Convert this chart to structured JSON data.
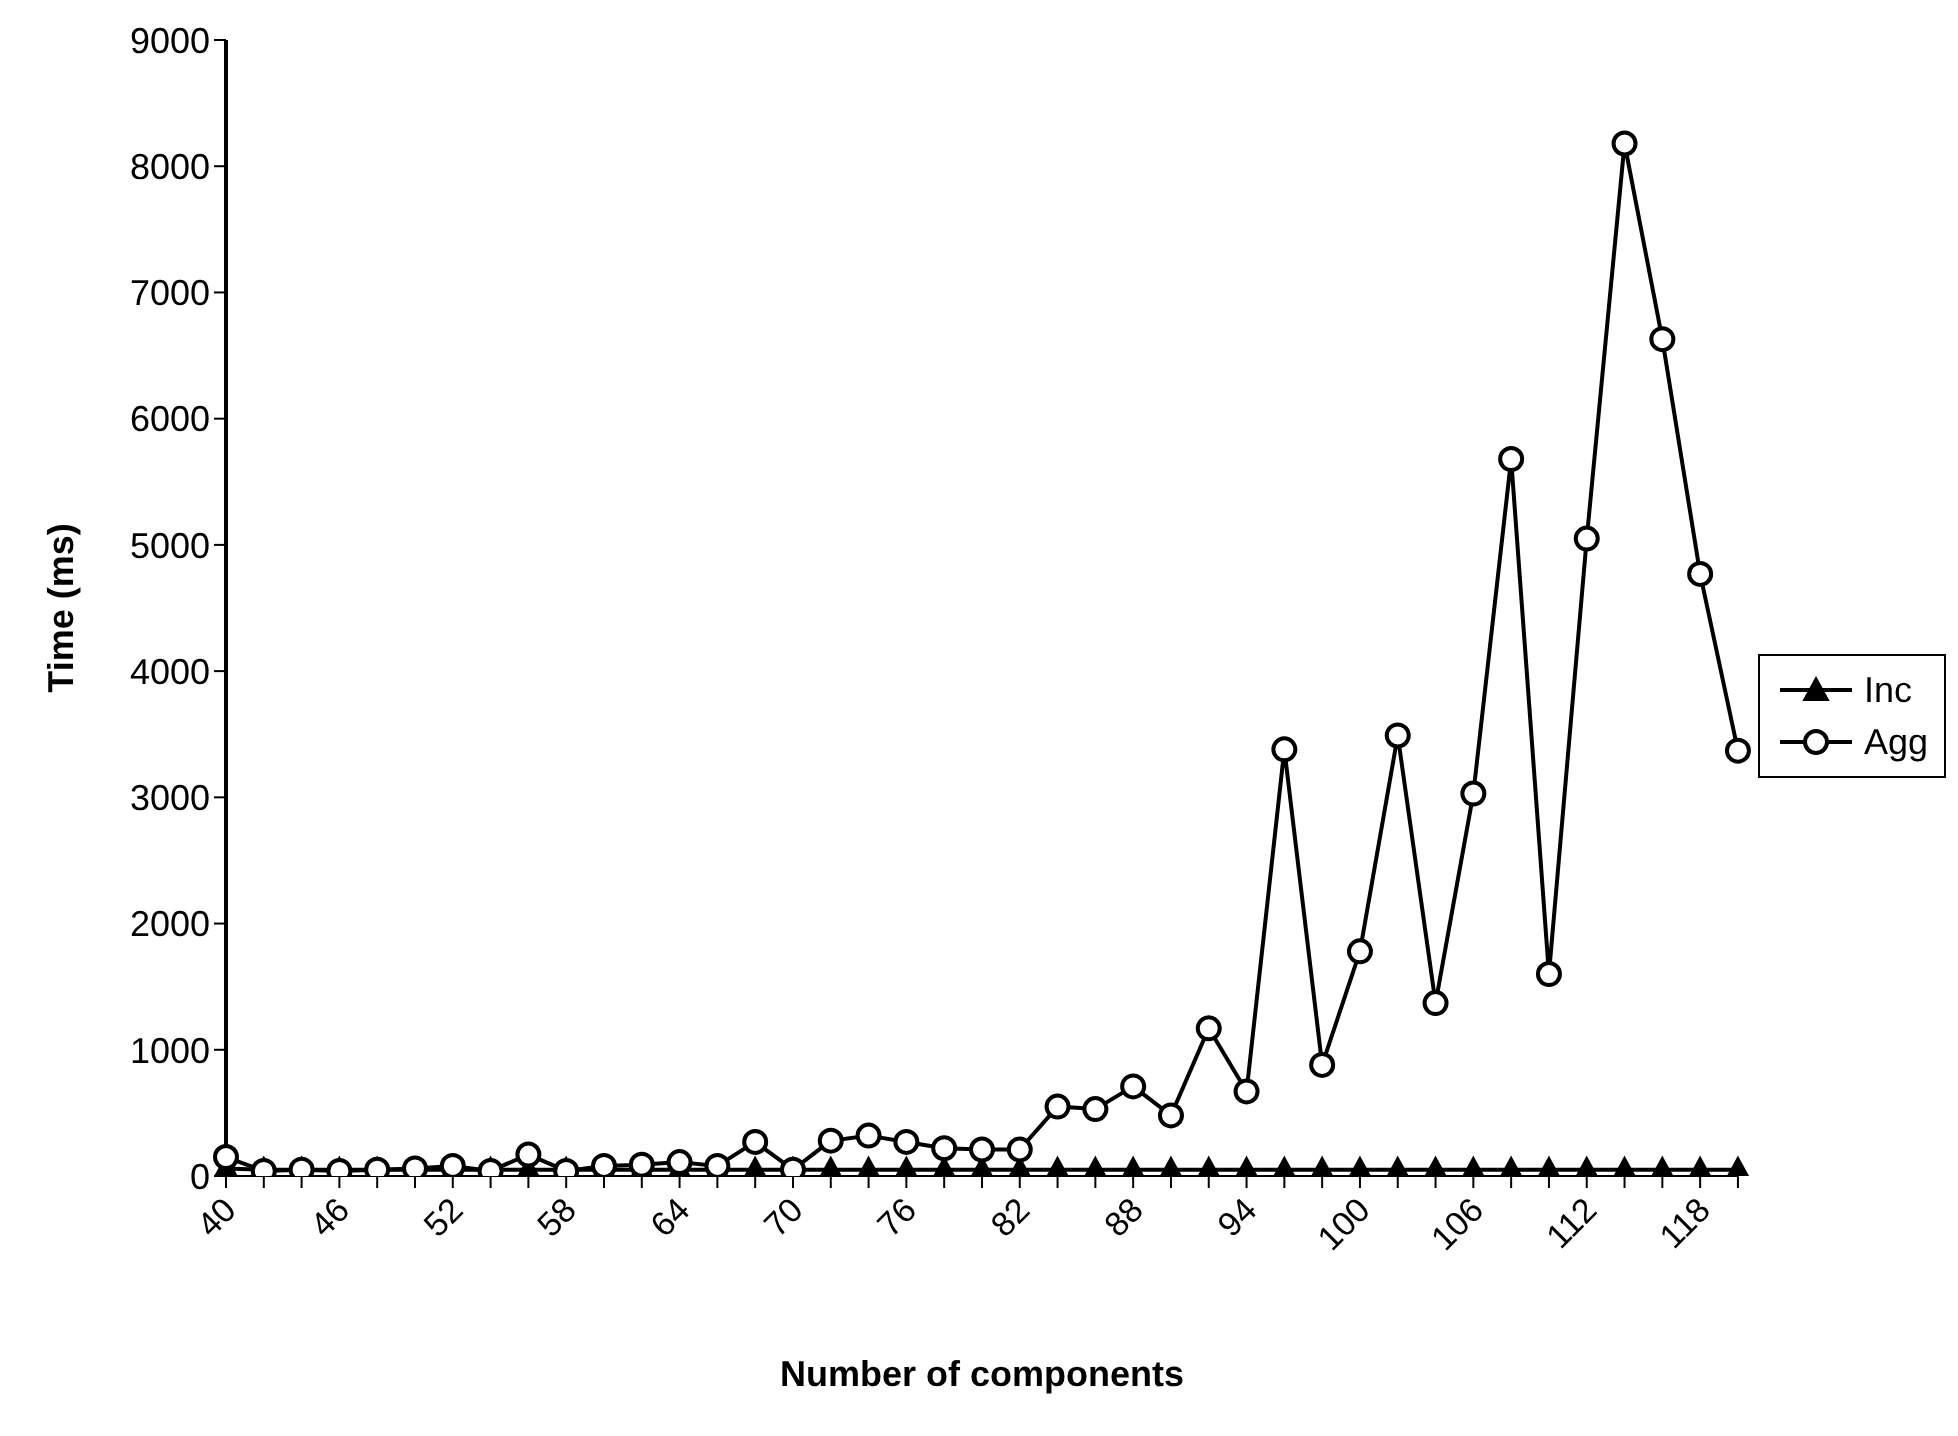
{
  "chart_data": {
    "type": "line",
    "xlabel": "Number of components",
    "ylabel": "Time (ms)",
    "categories": [
      "40",
      null,
      null,
      "46",
      null,
      null,
      "52",
      null,
      null,
      "58",
      null,
      null,
      "64",
      null,
      null,
      "70",
      null,
      null,
      "76",
      null,
      null,
      "82",
      null,
      null,
      "88",
      null,
      null,
      "94",
      null,
      null,
      "100",
      null,
      null,
      "106",
      null,
      null,
      "112",
      null,
      null,
      "118",
      null
    ],
    "series": [
      {
        "name": "Inc",
        "color": "#000000",
        "marker": "triangle",
        "values": [
          60,
          50,
          50,
          50,
          50,
          50,
          50,
          50,
          50,
          50,
          50,
          50,
          50,
          50,
          50,
          50,
          50,
          50,
          50,
          50,
          50,
          50,
          50,
          50,
          50,
          50,
          50,
          50,
          50,
          50,
          50,
          50,
          50,
          50,
          50,
          50,
          50,
          50,
          50,
          50,
          50
        ]
      },
      {
        "name": "Agg",
        "color": "#000000",
        "marker": "circle",
        "values": [
          150,
          40,
          50,
          40,
          50,
          60,
          80,
          40,
          170,
          40,
          80,
          90,
          110,
          80,
          270,
          50,
          280,
          320,
          270,
          220,
          210,
          210,
          550,
          530,
          710,
          480,
          1170,
          670,
          3380,
          880,
          1780,
          3490,
          1370,
          3030,
          5680,
          1600,
          5050,
          8180,
          6630,
          4770,
          3370
        ]
      }
    ],
    "ylim": [
      0,
      9000
    ],
    "yticks": [
      0,
      1000,
      2000,
      3000,
      4000,
      5000,
      6000,
      7000,
      8000,
      9000
    ],
    "legend": "right",
    "line_style": "solid"
  }
}
